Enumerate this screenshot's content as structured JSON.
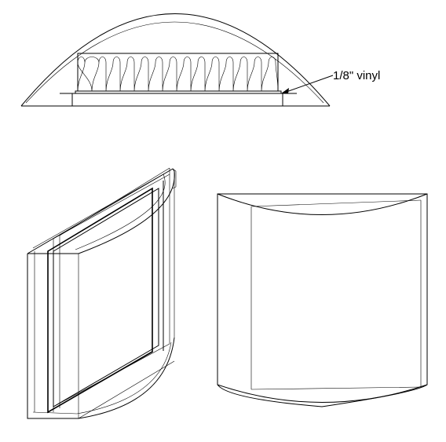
{
  "annotations": {
    "vinyl_label": "1/8\" vinyl"
  },
  "views": {
    "section": "",
    "oblique": "",
    "perspective": ""
  }
}
